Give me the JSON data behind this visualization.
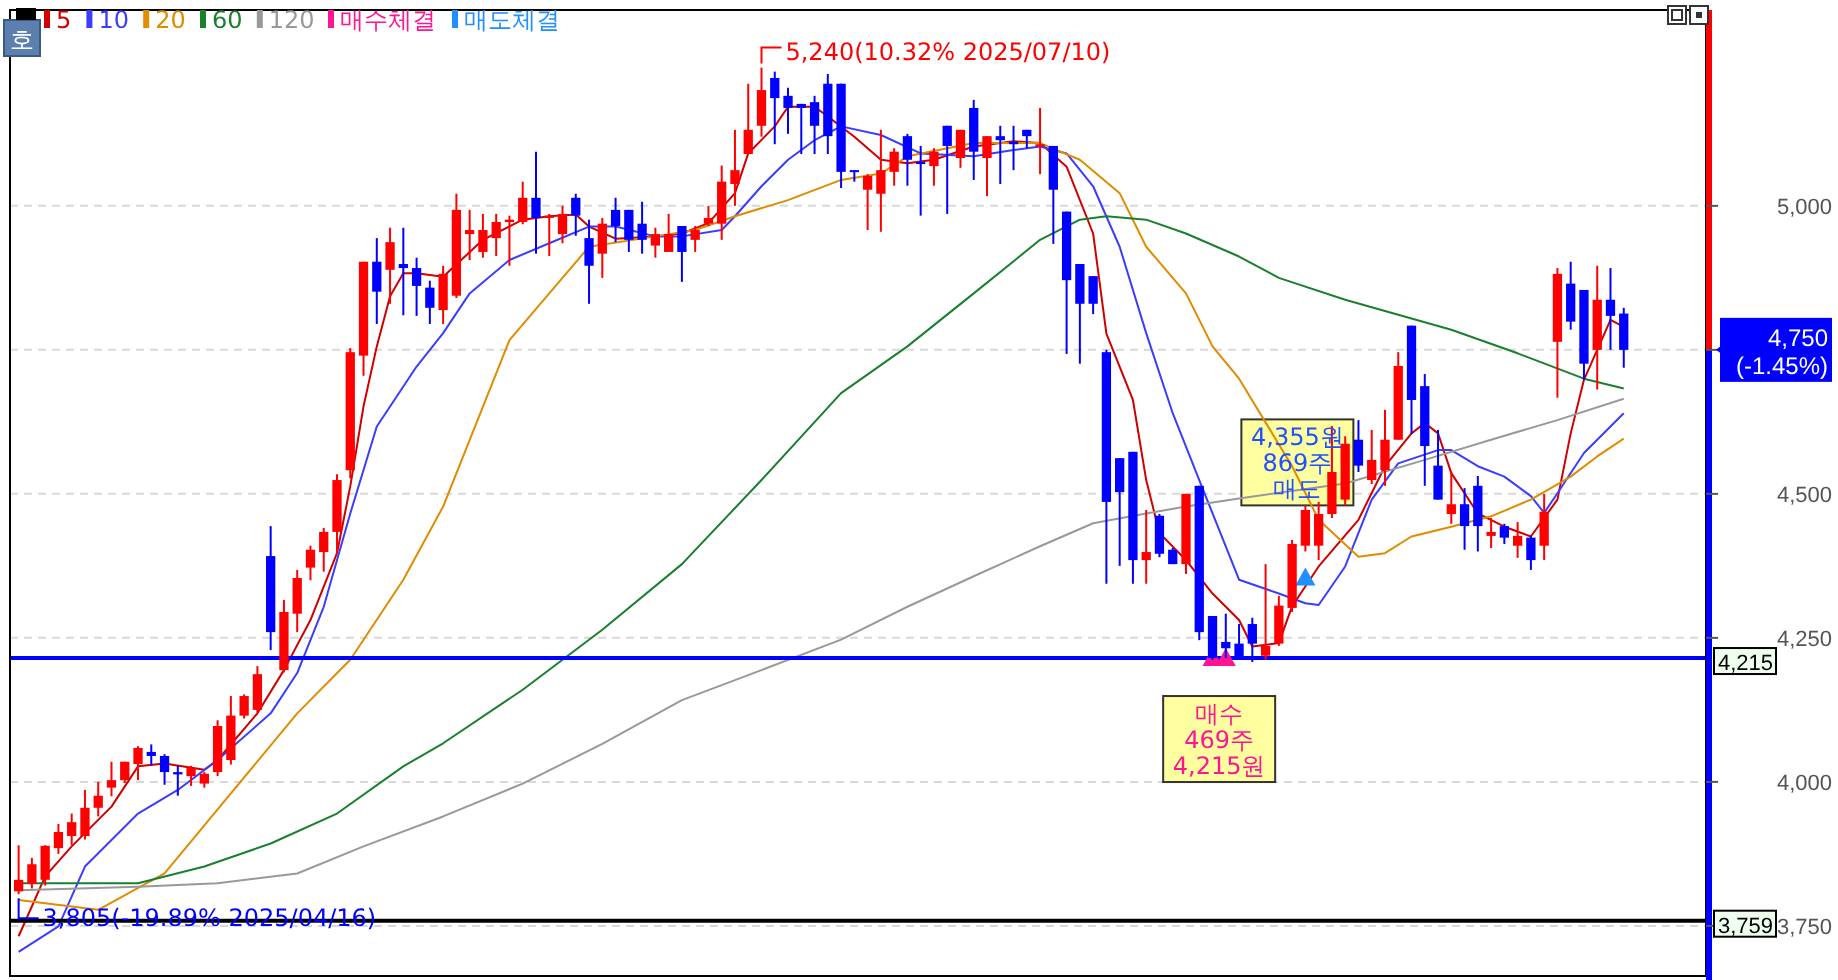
{
  "chart_data": {
    "type": "candlestick",
    "legend": "top left",
    "grid": "y",
    "tick_labels": "y",
    "categories": [
      null,
      null,
      null,
      null,
      null,
      null,
      null,
      null,
      null,
      null,
      null,
      null,
      null,
      null,
      null,
      null,
      null,
      null,
      null,
      null,
      null,
      null,
      null,
      null,
      null,
      null,
      null,
      null,
      null,
      null,
      null,
      null,
      null,
      null,
      null,
      null,
      null,
      null,
      null,
      null,
      null,
      null,
      null,
      null,
      null,
      null,
      null,
      null,
      null,
      null,
      null,
      null,
      null,
      null,
      null,
      null,
      null,
      null,
      null,
      null,
      null,
      null,
      null,
      null,
      null,
      null,
      null,
      null,
      null,
      null,
      null,
      null,
      null,
      null,
      null,
      null,
      null,
      null,
      null,
      null,
      null,
      null,
      null,
      null,
      null,
      null,
      null,
      null,
      null,
      null,
      null,
      null,
      null,
      null,
      null,
      null,
      null,
      null,
      null,
      null,
      null,
      null,
      null,
      null,
      null,
      null,
      null,
      null,
      null,
      null,
      null,
      null,
      null,
      null,
      null,
      null,
      null,
      null,
      null,
      null,
      null,
      null
    ],
    "ylim": [
      3663,
      5340
    ],
    "yticks": [
      {
        "value": 3750,
        "label": "3,750"
      },
      {
        "value": 4000,
        "label": "4,000"
      },
      {
        "value": 4250,
        "label": "4,250"
      },
      {
        "value": 4500,
        "label": "4,500"
      },
      {
        "value": 4750,
        "label": null
      },
      {
        "value": 5000,
        "label": "5,000"
      }
    ],
    "colors": [
      "#ff0000",
      "#ff0000",
      "#ff0000",
      "#ff0000",
      "#ff0000",
      "#ff0000",
      "#ff0000",
      "#ff0000",
      "#ff0000",
      "#ff0000",
      "#0000ff",
      "#0000ff",
      "#0000ff",
      "#ff0000",
      "#ff0000",
      "#ff0000",
      "#ff0000",
      "#ff0000",
      "#ff0000",
      "#0000ff",
      "#ff0000",
      "#ff0000",
      "#ff0000",
      "#ff0000",
      "#ff0000",
      "#ff0000",
      "#ff0000",
      "#0000ff",
      "#ff0000",
      "#0000ff",
      "#0000ff",
      "#0000ff",
      "#ff0000",
      "#ff0000",
      "#ff0000",
      "#ff0000",
      "#ff0000",
      "#ff0000",
      "#ff0000",
      "#0000ff",
      "#ff0000",
      "#ff0000",
      "#0000ff",
      "#0000ff",
      "#ff0000",
      "#0000ff",
      "#0000ff",
      "#0000ff",
      "#ff0000",
      "#ff0000",
      "#0000ff",
      "#ff0000",
      "#ff0000",
      "#ff0000",
      "#ff0000",
      "#ff0000",
      "#ff0000",
      "#0000ff",
      "#0000ff",
      "#0000ff",
      "#0000ff",
      "#0000ff",
      "#0000ff",
      "#0000ff",
      "#ff0000",
      "#ff0000",
      "#ff0000",
      "#0000ff",
      "#0000ff",
      "#ff0000",
      "#0000ff",
      "#ff0000",
      "#0000ff",
      "#ff0000",
      "#0000ff",
      "#0000ff",
      "#0000ff",
      "#ff0000",
      "#0000ff",
      "#0000ff",
      "#0000ff",
      "#0000ff",
      "#0000ff",
      "#0000ff",
      "#0000ff",
      "#ff0000",
      "#0000ff",
      "#0000ff",
      "#ff0000",
      "#0000ff",
      "#0000ff",
      "#0000ff",
      "#0000ff",
      "#0000ff",
      "#ff0000",
      "#ff0000",
      "#ff0000",
      "#ff0000",
      "#ff0000",
      "#ff0000",
      "#ff0000",
      "#0000ff",
      "#ff0000",
      "#ff0000",
      "#ff0000",
      "#0000ff",
      "#0000ff",
      "#0000ff",
      "#ff0000",
      "#0000ff",
      "#0000ff",
      "#ff0000",
      "#0000ff",
      "#ff0000",
      "#0000ff",
      "#ff0000",
      "#ff0000",
      "#0000ff",
      "#0000ff",
      "#ff0000",
      "#0000ff",
      "#0000ff"
    ],
    "ohlc": [
      [
        3810,
        3890,
        3805,
        3830
      ],
      [
        3823,
        3868,
        3815,
        3857
      ],
      [
        3830,
        3890,
        3820,
        3889
      ],
      [
        3885,
        3927,
        3875,
        3913
      ],
      [
        3906,
        3945,
        3890,
        3930
      ],
      [
        3906,
        3986,
        3900,
        3955
      ],
      [
        3955,
        4000,
        3940,
        3976
      ],
      [
        3990,
        4035,
        3975,
        4003
      ],
      [
        4003,
        4035,
        3998,
        4035
      ],
      [
        4031,
        4062,
        4003,
        4059
      ],
      [
        4052,
        4065,
        4028,
        4045
      ],
      [
        4045,
        4048,
        3995,
        4017
      ],
      [
        4017,
        4028,
        3976,
        4013
      ],
      [
        4010,
        4028,
        3993,
        4024
      ],
      [
        3997,
        4017,
        3990,
        4014
      ],
      [
        4017,
        4107,
        4010,
        4097
      ],
      [
        4038,
        4149,
        4030,
        4115
      ],
      [
        4115,
        4152,
        4110,
        4149
      ],
      [
        4125,
        4201,
        4120,
        4187
      ],
      [
        4392,
        4444,
        4229,
        4260
      ],
      [
        4194,
        4316,
        4190,
        4295
      ],
      [
        4292,
        4368,
        4260,
        4354
      ],
      [
        4372,
        4410,
        4350,
        4403
      ],
      [
        4399,
        4441,
        4365,
        4434
      ],
      [
        4434,
        4534,
        4396,
        4524
      ],
      [
        4541,
        4753,
        4527,
        4746
      ],
      [
        4740,
        4903,
        4705,
        4903
      ],
      [
        4903,
        4944,
        4795,
        4851
      ],
      [
        4889,
        4962,
        4830,
        4937
      ],
      [
        4899,
        4962,
        4810,
        4892
      ],
      [
        4892,
        4910,
        4809,
        4861
      ],
      [
        4858,
        4870,
        4795,
        4823
      ],
      [
        4819,
        4896,
        4795,
        4882
      ],
      [
        4844,
        5021,
        4840,
        4993
      ],
      [
        4951,
        4993,
        4906,
        4958
      ],
      [
        4920,
        4986,
        4910,
        4958
      ],
      [
        4944,
        4986,
        4913,
        4972
      ],
      [
        4972,
        4983,
        4896,
        4976
      ],
      [
        4972,
        5042,
        4968,
        5014
      ],
      [
        5014,
        5094,
        4917,
        4979
      ],
      [
        4979,
        4986,
        4913,
        4983
      ],
      [
        4951,
        5000,
        4935,
        4986
      ],
      [
        5014,
        5021,
        4948,
        4983
      ],
      [
        4944,
        4976,
        4830,
        4896
      ],
      [
        4917,
        4979,
        4875,
        4969
      ],
      [
        4993,
        5014,
        4937,
        4965
      ],
      [
        4993,
        4993,
        4920,
        4941
      ],
      [
        4969,
        5007,
        4917,
        4941
      ],
      [
        4931,
        4962,
        4910,
        4951
      ],
      [
        4920,
        4986,
        4920,
        4951
      ],
      [
        4965,
        4965,
        4868,
        4920
      ],
      [
        4941,
        4965,
        4920,
        4958
      ],
      [
        4969,
        5000,
        4965,
        4979
      ],
      [
        4969,
        5070,
        4941,
        5042
      ],
      [
        5038,
        5132,
        5000,
        5062
      ],
      [
        5090,
        5212,
        5090,
        5132
      ],
      [
        5139,
        5240,
        5120,
        5201
      ],
      [
        5222,
        5233,
        5107,
        5187
      ],
      [
        5191,
        5205,
        5125,
        5170
      ],
      [
        5177,
        5177,
        5090,
        5170
      ],
      [
        5180,
        5191,
        5090,
        5139
      ],
      [
        5212,
        5229,
        5090,
        5121
      ],
      [
        5212,
        5212,
        5031,
        5059
      ],
      [
        5062,
        5062,
        5042,
        5059
      ],
      [
        5028,
        5055,
        4958,
        5052
      ],
      [
        5021,
        5132,
        4955,
        5062
      ],
      [
        5059,
        5100,
        5035,
        5094
      ],
      [
        5121,
        5125,
        5035,
        5080
      ],
      [
        5076,
        5104,
        4983,
        5073
      ],
      [
        5069,
        5100,
        5035,
        5094
      ],
      [
        5139,
        5139,
        4986,
        5104
      ],
      [
        5083,
        5132,
        5066,
        5132
      ],
      [
        5170,
        5184,
        5045,
        5094
      ],
      [
        5083,
        5121,
        5017,
        5121
      ],
      [
        5121,
        5139,
        5038,
        5114
      ],
      [
        5111,
        5139,
        5062,
        5107
      ],
      [
        5132,
        5132,
        5100,
        5121
      ],
      [
        5104,
        5170,
        5055,
        5107
      ],
      [
        5104,
        5104,
        4934,
        5028
      ],
      [
        4990,
        4990,
        4743,
        4871
      ],
      [
        4899,
        4899,
        4726,
        4830
      ],
      [
        4878,
        4878,
        4812,
        4830
      ],
      [
        4746,
        4750,
        4344,
        4486
      ],
      [
        4562,
        4562,
        4375,
        4503
      ],
      [
        4573,
        4573,
        4344,
        4385
      ],
      [
        4385,
        4472,
        4344,
        4399
      ],
      [
        4462,
        4465,
        4390,
        4396
      ],
      [
        4403,
        4406,
        4378,
        4378
      ],
      [
        4378,
        4500,
        4361,
        4500
      ],
      [
        4514,
        4514,
        4246,
        4260
      ],
      [
        4288,
        4288,
        4212,
        4215
      ],
      [
        4243,
        4292,
        4215,
        4232
      ],
      [
        4240,
        4274,
        4212,
        4212
      ],
      [
        4274,
        4285,
        4208,
        4240
      ],
      [
        4219,
        4378,
        4212,
        4236
      ],
      [
        4240,
        4323,
        4236,
        4306
      ],
      [
        4302,
        4420,
        4295,
        4413
      ],
      [
        4410,
        4480,
        4400,
        4472
      ],
      [
        4410,
        4486,
        4385,
        4465
      ],
      [
        4465,
        4618,
        4458,
        4538
      ],
      [
        4490,
        4600,
        4480,
        4587
      ],
      [
        4594,
        4628,
        4538,
        4549
      ],
      [
        4524,
        4611,
        4517,
        4559
      ],
      [
        4541,
        4646,
        4514,
        4594
      ],
      [
        4594,
        4746,
        4594,
        4722
      ],
      [
        4792,
        4792,
        4604,
        4663
      ],
      [
        4687,
        4708,
        4514,
        4583
      ],
      [
        4549,
        4611,
        4490,
        4490
      ],
      [
        4465,
        4538,
        4448,
        4482
      ],
      [
        4482,
        4510,
        4403,
        4444
      ],
      [
        4514,
        4531,
        4400,
        4444
      ],
      [
        4427,
        4458,
        4406,
        4434
      ],
      [
        4444,
        4448,
        4413,
        4424
      ],
      [
        4410,
        4451,
        4389,
        4427
      ],
      [
        4424,
        4427,
        4368,
        4385
      ],
      [
        4410,
        4500,
        4385,
        4469
      ],
      [
        4764,
        4892,
        4667,
        4882
      ],
      [
        4865,
        4903,
        4785,
        4799
      ],
      [
        4854,
        4854,
        4698,
        4726
      ],
      [
        4750,
        4896,
        4681,
        4837
      ],
      [
        4837,
        4892,
        4750,
        4809
      ],
      [
        4813,
        4823,
        4719,
        4750
      ]
    ],
    "series": [
      {
        "name": "5",
        "type": "line",
        "color": "#d00000",
        "values": [
          3732,
          null,
          3836,
          null,
          3888,
          null,
          null,
          3957,
          null,
          4027,
          null,
          4032,
          null,
          null,
          4021,
          4038,
          null,
          null,
          4119,
          null,
          4194,
          null,
          4281,
          null,
          4397,
          4513,
          4652,
          4756,
          4843,
          4883,
          4883,
          null,
          4877,
          null,
          null,
          4941,
          null,
          null,
          4976,
          null,
          4982,
          null,
          4985,
          4964,
          null,
          4943,
          null,
          null,
          4947,
          null,
          4952,
          null,
          4970,
          null,
          5022,
          5091,
          null,
          5138,
          5172,
          null,
          5172,
          5155,
          null,
          5120,
          null,
          5080,
          null,
          5074,
          null,
          5080,
          null,
          null,
          5103,
          null,
          null,
          5112,
          null,
          5109,
          null,
          5068,
          null,
          4952,
          4778,
          null,
          4663,
          4524,
          4432,
          null,
          4385,
          null,
          4327,
          null,
          4281,
          4235,
          null,
          4241,
          4305,
          null,
          4374,
          null,
          null,
          4455,
          null,
          4548,
          null,
          4605,
          4623,
          4605,
          4536,
          null,
          4466,
          null,
          4443,
          null,
          4426,
          null,
          4490,
          4605,
          4698,
          null,
          4802,
          4790
        ]
      },
      {
        "name": "10",
        "type": "line",
        "color": "#3c3cff",
        "values": [
          3705,
          null,
          null,
          3749,
          null,
          3853,
          null,
          null,
          null,
          3945,
          null,
          null,
          3986,
          null,
          null,
          4038,
          null,
          null,
          null,
          4119,
          null,
          4189,
          null,
          4304,
          null,
          4466,
          null,
          4617,
          null,
          null,
          4721,
          null,
          4779,
          null,
          4848,
          null,
          null,
          4906,
          null,
          null,
          4935,
          null,
          null,
          4964,
          null,
          4964,
          null,
          null,
          4947,
          null,
          4947,
          null,
          null,
          4958,
          4982,
          null,
          5034,
          null,
          5080,
          null,
          5114,
          null,
          5138,
          null,
          null,
          5123,
          null,
          null,
          5091,
          null,
          null,
          null,
          5086,
          null,
          null,
          5097,
          null,
          5103,
          null,
          5091,
          null,
          5034,
          null,
          4929,
          null,
          4779,
          null,
          4640,
          null,
          4524,
          null,
          null,
          4351,
          null,
          null,
          4327,
          null,
          4310,
          4307,
          null,
          4374,
          null,
          4490,
          null,
          4553,
          null,
          null,
          4576,
          4576,
          null,
          4548,
          null,
          4530,
          null,
          4496,
          4467,
          4501,
          null,
          4571,
          null,
          null,
          4640
        ]
      },
      {
        "name": "20",
        "type": "line",
        "color": "#e08c00",
        "values": [
          3795,
          null,
          null,
          null,
          null,
          null,
          3778,
          null,
          null,
          null,
          null,
          3841,
          null,
          null,
          null,
          null,
          3980,
          null,
          null,
          null,
          null,
          4119,
          null,
          null,
          null,
          4212,
          null,
          null,
          null,
          4351,
          null,
          null,
          4478,
          null,
          null,
          null,
          null,
          4767,
          null,
          null,
          4848,
          null,
          null,
          4929,
          null,
          null,
          null,
          null,
          4947,
          null,
          null,
          4958,
          null,
          null,
          4982,
          null,
          null,
          null,
          5010,
          null,
          null,
          null,
          5045,
          null,
          null,
          5056,
          null,
          5086,
          null,
          null,
          null,
          null,
          5109,
          null,
          null,
          null,
          null,
          5109,
          null,
          null,
          5080,
          null,
          null,
          5022,
          null,
          4929,
          null,
          null,
          4848,
          null,
          4756,
          null,
          4700,
          null,
          null,
          null,
          4548,
          null,
          4455,
          null,
          null,
          4391,
          null,
          4397,
          null,
          4426,
          null,
          null,
          4443,
          null,
          null,
          4461,
          null,
          null,
          4490,
          null,
          null,
          4530,
          null,
          4565,
          null,
          4596
        ]
      },
      {
        "name": "60",
        "type": "line",
        "color": "#1a7f2e",
        "values": [
          3824,
          null,
          null,
          null,
          null,
          null,
          null,
          null,
          null,
          3824,
          null,
          null,
          null,
          null,
          3853,
          null,
          null,
          null,
          null,
          3893,
          null,
          null,
          null,
          null,
          3945,
          null,
          null,
          null,
          null,
          4027,
          null,
          null,
          4067,
          null,
          null,
          null,
          null,
          null,
          4160,
          null,
          null,
          null,
          null,
          null,
          4264,
          null,
          null,
          null,
          null,
          null,
          4378,
          null,
          null,
          null,
          null,
          null,
          4524,
          null,
          null,
          null,
          null,
          null,
          4675,
          null,
          null,
          null,
          null,
          4756,
          null,
          null,
          null,
          null,
          4848,
          null,
          null,
          null,
          null,
          4941,
          null,
          null,
          4976,
          null,
          4982,
          null,
          null,
          4976,
          null,
          null,
          4952,
          null,
          null,
          null,
          4912,
          null,
          null,
          4875,
          null,
          null,
          null,
          null,
          4837,
          null,
          null,
          null,
          null,
          null,
          null,
          null,
          4785,
          null,
          null,
          null,
          null,
          4744,
          null,
          null,
          null,
          null,
          4700,
          null,
          null,
          4683
        ]
      },
      {
        "name": "120",
        "type": "line",
        "color": "#999999",
        "values": [
          3812,
          null,
          null,
          null,
          null,
          null,
          null,
          null,
          null,
          3818,
          null,
          null,
          null,
          null,
          null,
          3824,
          null,
          null,
          null,
          null,
          null,
          3841,
          null,
          null,
          null,
          null,
          3888,
          null,
          null,
          null,
          null,
          null,
          3940,
          null,
          null,
          null,
          null,
          null,
          3997,
          null,
          null,
          null,
          null,
          null,
          4066,
          null,
          null,
          null,
          null,
          null,
          4142,
          null,
          null,
          null,
          null,
          null,
          4194,
          null,
          null,
          null,
          null,
          null,
          4247,
          null,
          null,
          null,
          null,
          4304,
          null,
          null,
          null,
          null,
          4357,
          null,
          null,
          null,
          null,
          4409,
          null,
          null,
          null,
          4449,
          null,
          null,
          null,
          4466,
          null,
          null,
          4478,
          null,
          null,
          null,
          4492,
          null,
          null,
          null,
          null,
          null,
          null,
          null,
          4518,
          null,
          null,
          null,
          null,
          null,
          4559,
          null,
          null,
          null,
          null,
          4594,
          null,
          null,
          null,
          null,
          4628,
          null,
          null,
          null,
          null,
          4665
        ]
      },
      {
        "name": "매수체결",
        "type": "scatter",
        "color": "#ff1493",
        "marker": "triangle",
        "values": [
          null,
          null,
          null,
          null,
          null,
          null,
          null,
          null,
          null,
          null,
          null,
          null,
          null,
          null,
          null,
          null,
          null,
          null,
          null,
          null,
          null,
          null,
          null,
          null,
          null,
          null,
          null,
          null,
          null,
          null,
          null,
          null,
          null,
          null,
          null,
          null,
          null,
          null,
          null,
          null,
          null,
          null,
          null,
          null,
          null,
          null,
          null,
          null,
          null,
          null,
          null,
          null,
          null,
          null,
          null,
          null,
          null,
          null,
          null,
          null,
          null,
          null,
          null,
          null,
          null,
          null,
          null,
          null,
          null,
          null,
          null,
          null,
          null,
          null,
          null,
          null,
          null,
          null,
          null,
          null,
          null,
          null,
          null,
          null,
          null,
          null,
          null,
          null,
          null,
          null,
          4215,
          4215,
          null,
          null,
          null,
          null,
          null,
          null,
          null,
          null,
          null,
          null,
          null,
          null,
          null,
          null,
          null,
          null,
          null,
          null,
          null,
          null,
          null,
          null,
          null,
          null,
          null,
          null,
          null,
          null,
          null,
          null
        ]
      },
      {
        "name": "매도체결",
        "type": "scatter",
        "color": "#1e90ff",
        "marker": "triangle",
        "values": [
          null,
          null,
          null,
          null,
          null,
          null,
          null,
          null,
          null,
          null,
          null,
          null,
          null,
          null,
          null,
          null,
          null,
          null,
          null,
          null,
          null,
          null,
          null,
          null,
          null,
          null,
          null,
          null,
          null,
          null,
          null,
          null,
          null,
          null,
          null,
          null,
          null,
          null,
          null,
          null,
          null,
          null,
          null,
          null,
          null,
          null,
          null,
          null,
          null,
          null,
          null,
          null,
          null,
          null,
          null,
          null,
          null,
          null,
          null,
          null,
          null,
          null,
          null,
          null,
          null,
          null,
          null,
          null,
          null,
          null,
          null,
          null,
          null,
          null,
          null,
          null,
          null,
          null,
          null,
          null,
          null,
          null,
          null,
          null,
          null,
          null,
          null,
          null,
          null,
          null,
          null,
          null,
          null,
          null,
          null,
          null,
          null,
          4355,
          null,
          null,
          null,
          null,
          null,
          null,
          null,
          null,
          null,
          null,
          null,
          null,
          null,
          null,
          null,
          null,
          null,
          null,
          null,
          null,
          null,
          null,
          null,
          null
        ]
      }
    ],
    "ref_lines": [
      {
        "axis": "y",
        "value": 4215,
        "label": "4,215",
        "color": "#0000ff"
      },
      {
        "axis": "y",
        "value": 3759,
        "label": "3,759",
        "color": "#000000"
      }
    ],
    "annotations": [
      "호",
      "5,240(10.32% 2025/07/10)",
      "3,805(-19.89% 2025/04/16)",
      "매수\n469주\n4,215원",
      "4,355원\n869주\n매도",
      "4,750\n(-1.45%)"
    ]
  }
}
